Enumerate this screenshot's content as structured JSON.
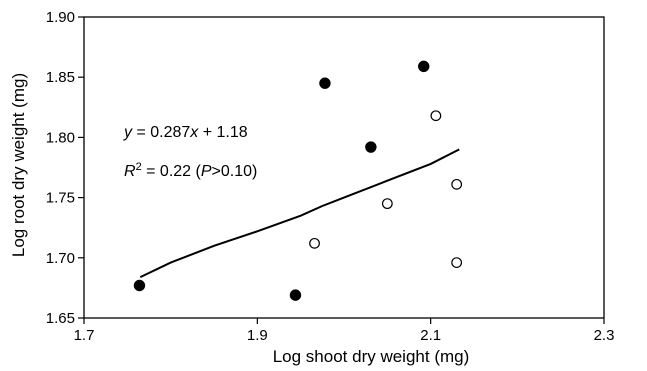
{
  "chart_data": {
    "type": "scatter",
    "title": "",
    "xlabel": "Log shoot dry weight (mg)",
    "ylabel": "Log root dry weight (mg)",
    "xlim": [
      1.7,
      2.3
    ],
    "ylim": [
      1.65,
      1.9
    ],
    "x_ticks": [
      "1.7",
      "1.9",
      "2.1",
      "2.3"
    ],
    "y_ticks": [
      "1.65",
      "1.70",
      "1.75",
      "1.80",
      "1.85",
      "1.90"
    ],
    "grid": false,
    "series": [
      {
        "marker": "filled-circle",
        "color": "#000000",
        "points": [
          {
            "x": 1.764,
            "y": 1.677
          },
          {
            "x": 1.944,
            "y": 1.669
          },
          {
            "x": 1.978,
            "y": 1.845
          },
          {
            "x": 2.031,
            "y": 1.792
          },
          {
            "x": 2.092,
            "y": 1.859
          }
        ]
      },
      {
        "marker": "open-circle",
        "color": "#000000",
        "points": [
          {
            "x": 1.966,
            "y": 1.712
          },
          {
            "x": 2.05,
            "y": 1.745
          },
          {
            "x": 2.106,
            "y": 1.818
          },
          {
            "x": 2.13,
            "y": 1.761
          },
          {
            "x": 2.13,
            "y": 1.696
          }
        ]
      }
    ],
    "fit_line": {
      "x": [
        1.765,
        1.8,
        1.85,
        1.9,
        1.95,
        1.975,
        2.0,
        2.05,
        2.1,
        2.133
      ],
      "y": [
        1.684,
        1.696,
        1.71,
        1.722,
        1.735,
        1.743,
        1.75,
        1.764,
        1.778,
        1.79
      ]
    },
    "annotations": {
      "equation": {
        "y_var": "y",
        "eq": " = 0.287",
        "x_var": "x",
        "rest": " + 1.18"
      },
      "r2": {
        "r_var": "R",
        "sup": "2",
        "mid": " = 0.22 (",
        "p_var": "P",
        "tail": ">0.10)"
      }
    }
  }
}
